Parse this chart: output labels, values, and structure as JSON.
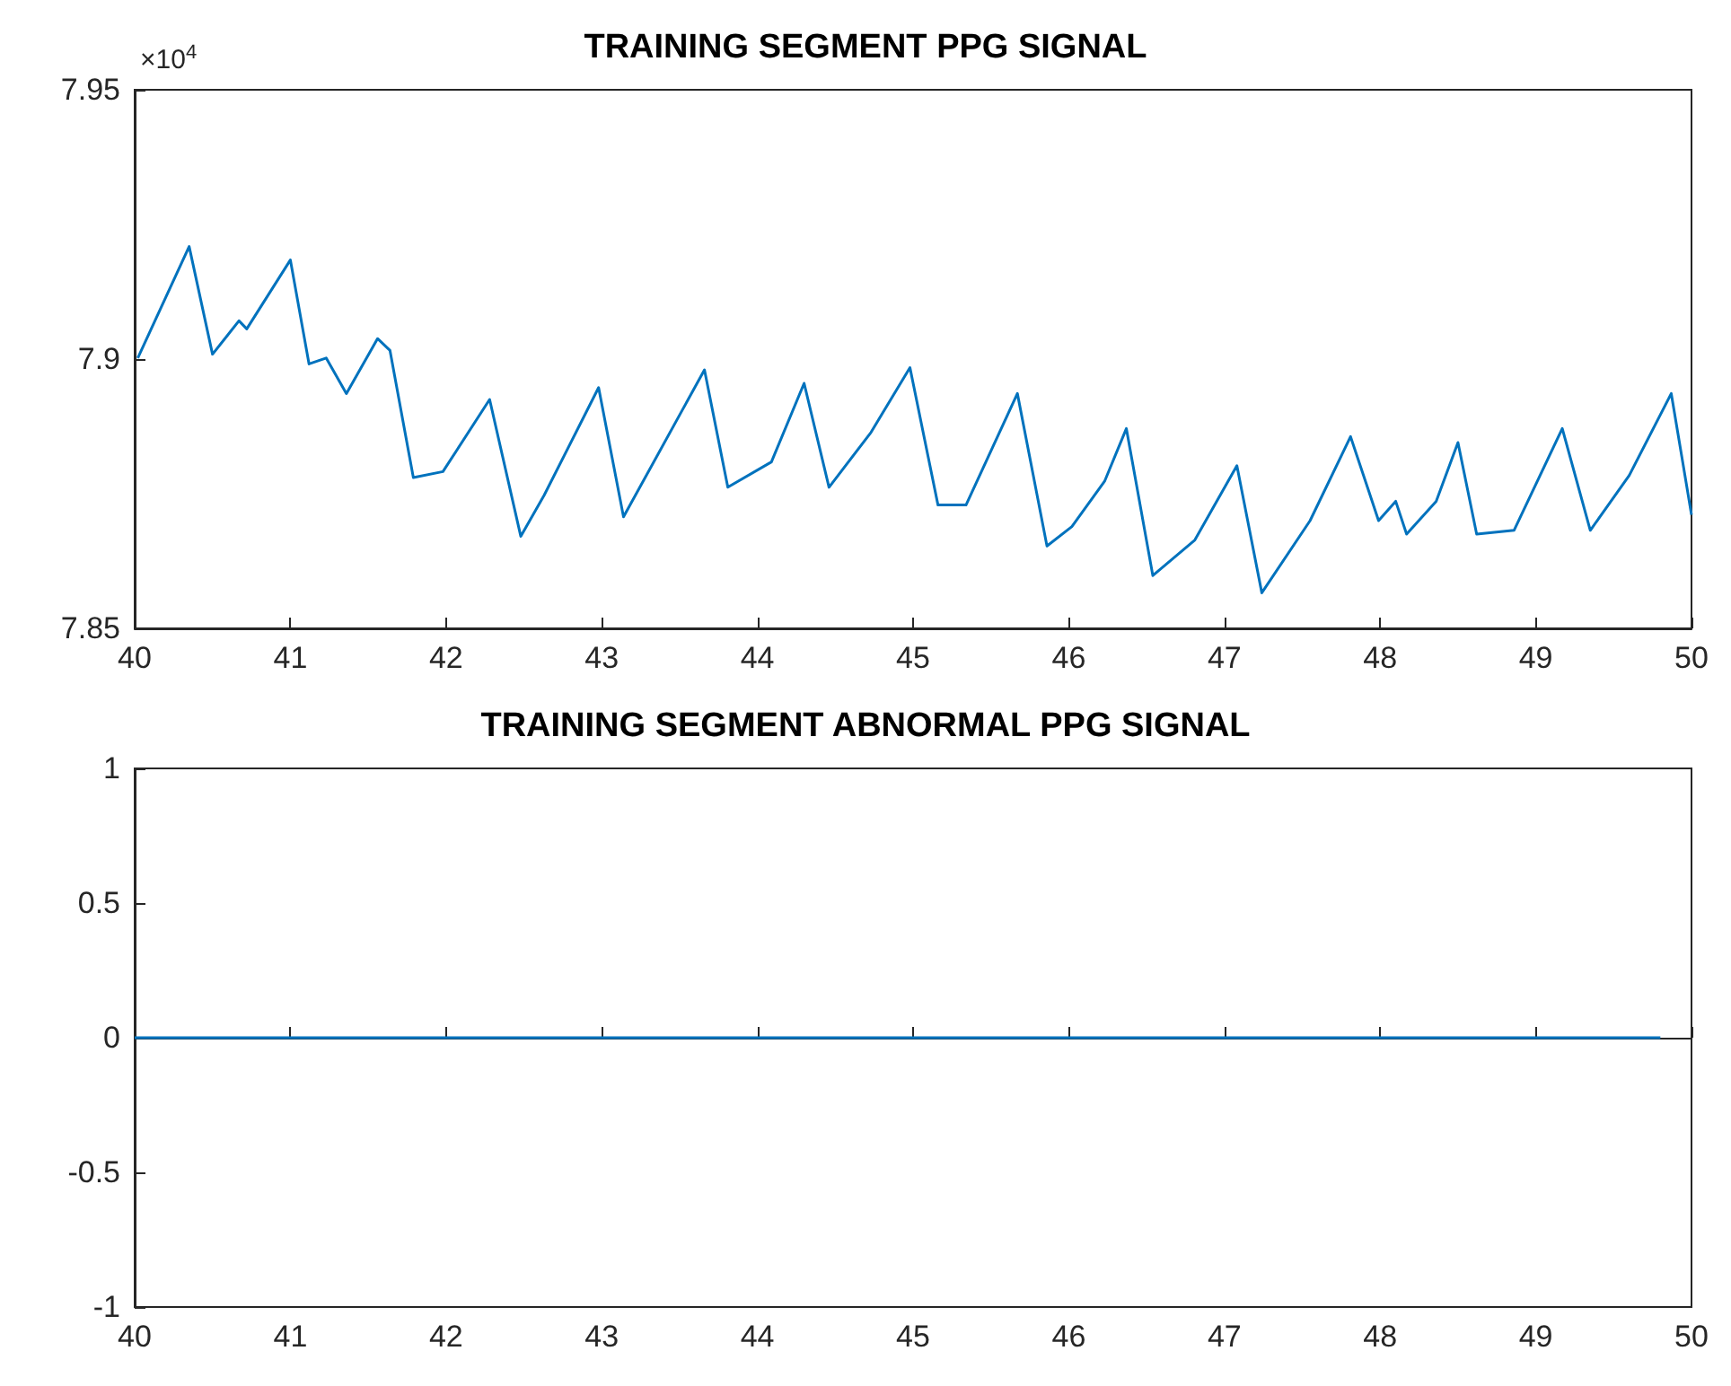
{
  "chart_data": [
    {
      "type": "line",
      "title": "TRAINING SEGMENT PPG SIGNAL",
      "annotations": [
        "×10$^{4}$"
      ],
      "x": [
        40.02,
        40.35,
        40.5,
        40.67,
        40.72,
        41.0,
        41.12,
        41.23,
        41.36,
        41.56,
        41.64,
        41.79,
        41.98,
        42.28,
        42.48,
        42.63,
        42.98,
        43.14,
        43.66,
        43.81,
        44.09,
        44.3,
        44.46,
        44.73,
        44.98,
        45.16,
        45.34,
        45.67,
        45.86,
        46.02,
        46.23,
        46.37,
        46.54,
        46.81,
        47.08,
        47.24,
        47.55,
        47.81,
        47.99,
        48.1,
        48.17,
        48.36,
        48.5,
        48.62,
        48.86,
        49.17,
        49.35,
        49.6,
        49.87,
        50.0
      ],
      "series": [
        {
          "color": "#0072bd",
          "values": [
            7.9002,
            7.9209,
            7.9009,
            7.9071,
            7.9056,
            7.9184,
            7.8991,
            7.9002,
            7.8936,
            7.9038,
            7.9016,
            7.878,
            7.8791,
            7.8925,
            7.8671,
            7.8747,
            7.8947,
            7.8707,
            7.898,
            7.8762,
            7.8809,
            7.8955,
            7.8762,
            7.8864,
            7.8984,
            7.8729,
            7.8729,
            7.8936,
            7.8653,
            7.8689,
            7.8773,
            7.8871,
            7.8598,
            7.8664,
            7.8802,
            7.8566,
            7.87,
            7.8856,
            7.87,
            7.8736,
            7.8675,
            7.8736,
            7.8845,
            7.8675,
            7.8682,
            7.8871,
            7.8682,
            7.8784,
            7.8936,
            7.8711
          ]
        }
      ],
      "xlim": [
        40,
        50
      ],
      "xticks": [
        40,
        41,
        42,
        43,
        44,
        45,
        46,
        47,
        48,
        49,
        50
      ],
      "ylim": [
        7.85,
        7.95
      ],
      "yticks": [
        7.85,
        7.9,
        7.95
      ]
    },
    {
      "type": "line",
      "title": "TRAINING SEGMENT ABNORMAL PPG SIGNAL",
      "x": [
        40,
        49.8
      ],
      "series": [
        {
          "color": "#0072bd",
          "values": [
            0,
            0
          ]
        }
      ],
      "xlim": [
        40,
        50
      ],
      "xticks": [
        40,
        41,
        42,
        43,
        44,
        45,
        46,
        47,
        48,
        49,
        50
      ],
      "ylim": [
        -1,
        1
      ],
      "yticks": [
        -1,
        -0.5,
        0,
        0.5,
        1
      ]
    }
  ]
}
